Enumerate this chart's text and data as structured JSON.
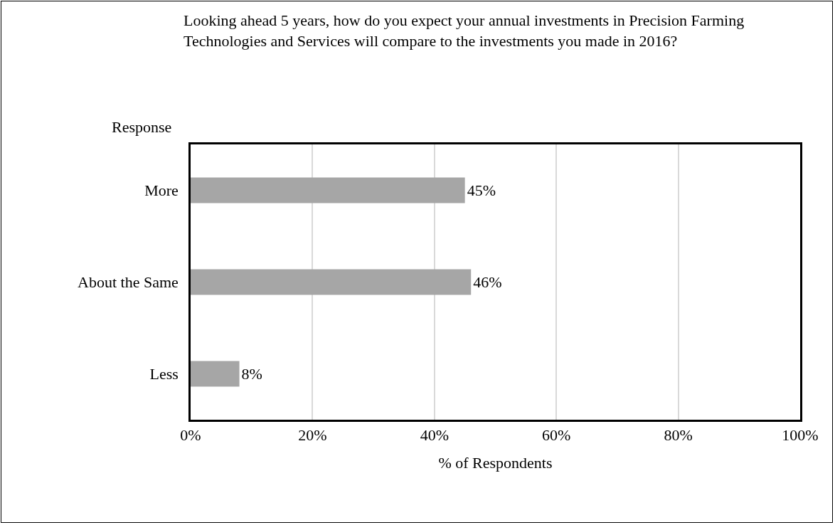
{
  "chart_data": {
    "type": "bar",
    "orientation": "horizontal",
    "title": "Looking ahead 5 years, how do you expect your annual investments in Precision Farming Technologies and Services will compare to the investments you made in 2016?",
    "ylabel": "Response",
    "xlabel": "% of Respondents",
    "categories": [
      "More",
      "About the Same",
      "Less"
    ],
    "values": [
      45,
      46,
      8
    ],
    "value_labels": [
      "45%",
      "46%",
      "8%"
    ],
    "color": "#a6a6a6",
    "xlim": [
      0,
      100
    ],
    "xticks": [
      {
        "value": 0,
        "label": "0%"
      },
      {
        "value": 20,
        "label": "20%"
      },
      {
        "value": 40,
        "label": "40%"
      },
      {
        "value": 60,
        "label": "60%"
      },
      {
        "value": 80,
        "label": "80%"
      },
      {
        "value": 100,
        "label": "100%"
      }
    ],
    "grid": "x"
  }
}
